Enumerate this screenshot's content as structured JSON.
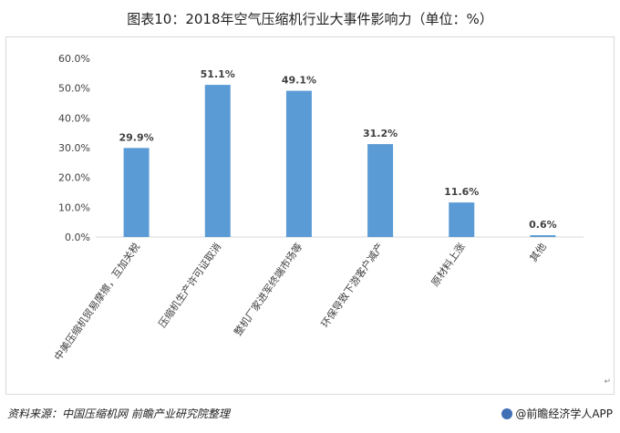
{
  "title": "图表10：2018年空气压缩机行业大事件影响力（单位：%）",
  "source": "资料来源：中国压缩机网 前瞻产业研究院整理",
  "brand": "@前瞻经济学人APP",
  "colors": {
    "bar": "#5b9bd5",
    "axis": "#d9d9d9",
    "text": "#404040"
  },
  "chart_data": {
    "type": "bar",
    "title": "图表10：2018年空气压缩机行业大事件影响力（单位：%）",
    "xlabel": "",
    "ylabel": "",
    "categories": [
      "中美压缩机贸易摩擦，互加关税",
      "压缩机生产许可证取消",
      "整机厂家进军终端市场等",
      "环保导致下游客户减产",
      "原材料上涨",
      "其他"
    ],
    "values": [
      29.9,
      51.1,
      49.1,
      31.2,
      11.6,
      0.6
    ],
    "value_labels": [
      "29.9%",
      "51.1%",
      "49.1%",
      "31.2%",
      "11.6%",
      "0.6%"
    ],
    "ylim": [
      0,
      60
    ],
    "yticks": [
      "0.0%",
      "10.0%",
      "20.0%",
      "30.0%",
      "40.0%",
      "50.0%",
      "60.0%"
    ],
    "grid": false,
    "legend": "none"
  }
}
